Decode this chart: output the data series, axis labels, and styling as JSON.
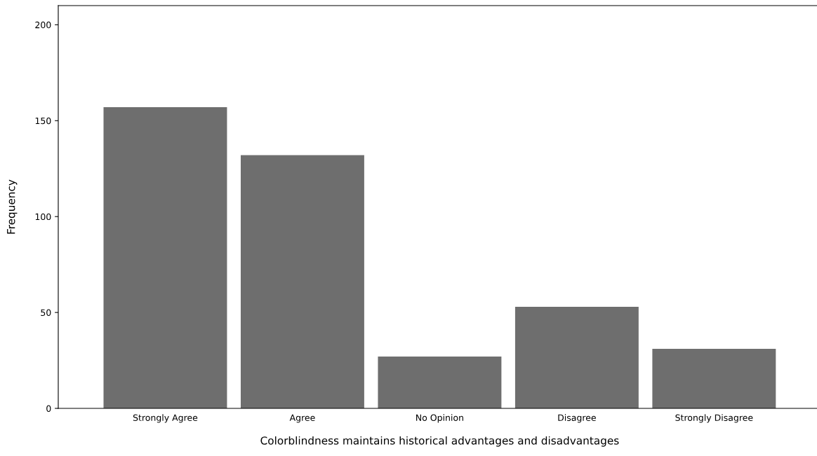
{
  "chart_data": {
    "type": "bar",
    "xlabel": "Colorblindness maintains historical advantages and disadvantages",
    "ylabel": "Frequency",
    "categories": [
      "Strongly Agree",
      "Agree",
      "No Opinion",
      "Disagree",
      "Strongly Disagree"
    ],
    "values": [
      157,
      132,
      27,
      53,
      31
    ],
    "color": "#6e6e6e",
    "ylim": [
      0,
      210
    ],
    "yticks": [
      0,
      50,
      100,
      150,
      200
    ],
    "grid": false
  }
}
